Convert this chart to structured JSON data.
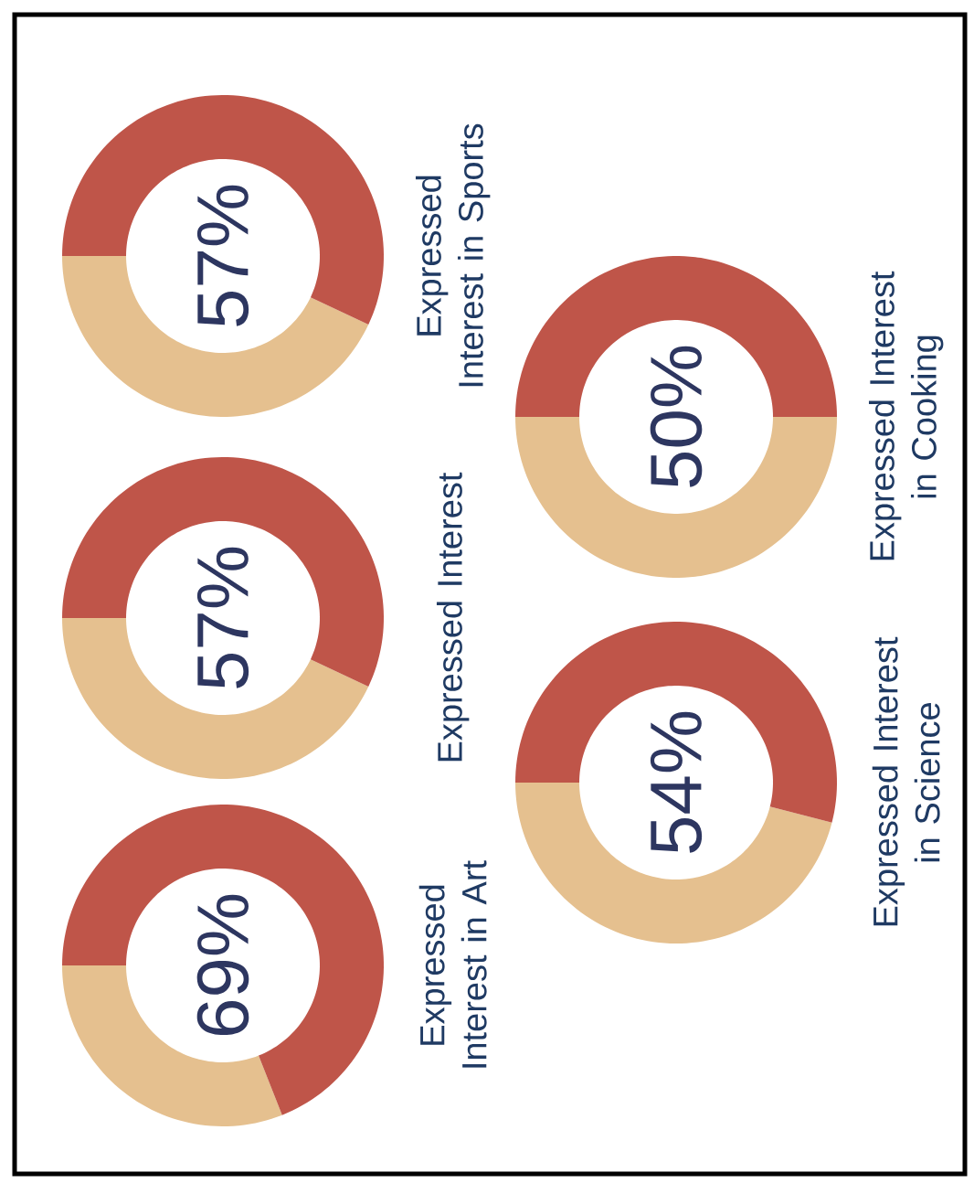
{
  "chart_data": [
    {
      "type": "donut",
      "title": "Expressed Interest in Art",
      "categories": [
        null,
        null
      ],
      "values": [
        69,
        31
      ],
      "colors": [
        "#bf5549",
        "#e5c08f"
      ],
      "value_labels": [
        "69%",
        null
      ]
    },
    {
      "type": "donut",
      "title": "Expressed Interest",
      "categories": [
        null,
        null
      ],
      "values": [
        57,
        43
      ],
      "colors": [
        "#bf5549",
        "#e5c08f"
      ],
      "value_labels": [
        "57%",
        null
      ]
    },
    {
      "type": "donut",
      "title": "Expressed Interest in Sports",
      "categories": [
        null,
        null
      ],
      "values": [
        57,
        43
      ],
      "colors": [
        "#bf5549",
        "#e5c08f"
      ],
      "value_labels": [
        "57%",
        null
      ]
    },
    {
      "type": "donut",
      "title": "Expressed Interest in Science",
      "categories": [
        null,
        null
      ],
      "values": [
        54,
        46
      ],
      "colors": [
        "#bf5549",
        "#e5c08f"
      ],
      "value_labels": [
        "54%",
        null
      ]
    },
    {
      "type": "donut",
      "title": "Expressed Interest in Cooking",
      "categories": [
        null,
        null
      ],
      "values": [
        50,
        50
      ],
      "colors": [
        "#bf5549",
        "#e5c08f"
      ],
      "value_labels": [
        "50%",
        null
      ]
    }
  ]
}
